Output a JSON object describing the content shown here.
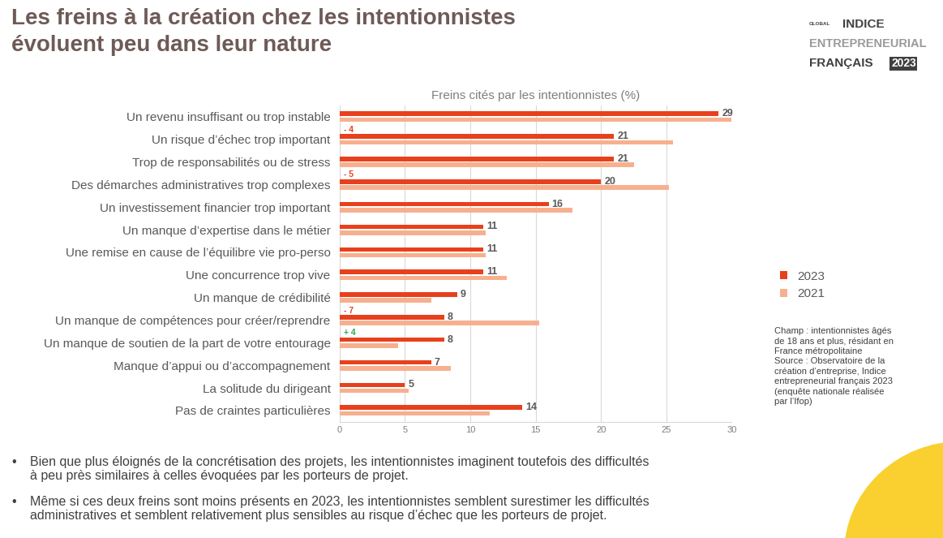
{
  "title": "Les freins à la création chez les intentionnistes\névoluent peu dans leur nature",
  "logo": [
    "GLOBAL",
    "INDICE",
    "ENTREPRENEURIAL",
    "FRANÇAIS",
    "2023"
  ],
  "chart_data": {
    "type": "bar",
    "orientation": "horizontal",
    "title": "Freins cités par les intentionnistes (%)",
    "categories": [
      "Un revenu insuffisant ou trop instable",
      "Un risque d’échec trop important",
      "Trop de responsabilités ou de stress",
      "Des démarches administratives trop complexes",
      "Un investissement financier trop important",
      "Un manque d’expertise dans le métier",
      "Une remise en cause de l’équilibre vie pro-perso",
      "Une concurrence trop vive",
      "Un manque de crédibilité",
      "Un manque de compétences pour créer/reprendre",
      "Un manque de soutien de la part de votre entourage",
      "Manque d’appui ou d’accompagnement",
      "La solitude du dirigeant",
      "Pas de craintes particulières"
    ],
    "series": [
      {
        "name": "2023",
        "color": "#e8401c",
        "values": [
          29,
          21,
          21,
          20,
          16,
          11,
          11,
          11,
          9,
          8,
          8,
          7,
          5,
          14
        ],
        "value_labels": [
          "29",
          "21",
          "21",
          "20",
          "16",
          "11",
          "11",
          "11",
          "9",
          "8",
          "8",
          "7",
          "5",
          "14"
        ]
      },
      {
        "name": "2021",
        "color": "#f7b08f",
        "values": [
          30,
          25.5,
          22.5,
          25.2,
          17.8,
          11.2,
          11.2,
          12.8,
          7,
          15.3,
          4.5,
          8.5,
          5.3,
          11.5
        ]
      }
    ],
    "annotations": [
      {
        "category": "Un risque d’échec trop important",
        "text": "- 4"
      },
      {
        "category": "Des démarches administratives trop complexes",
        "text": "- 5"
      },
      {
        "category": "Un manque de compétences pour créer/reprendre",
        "text": "- 7"
      },
      {
        "category": "Un manque de soutien de la part de votre entourage",
        "text": "+ 4"
      }
    ],
    "xlim": [
      0,
      30
    ],
    "xticks": [
      0,
      5,
      10,
      15,
      20,
      25,
      30
    ],
    "grid": true,
    "legend": "right",
    "data_labels": true
  },
  "note": "Champ : intentionnistes âgés\nde 18 ans et plus, résidant en\nFrance métropolitaine\nSource : Observatoire de la\ncréation d’entreprise, Indice\nentrepreneurial français 2023\n(enquête nationale réalisée\npar l’Ifop)",
  "bullet_symbol": "•",
  "bullets": [
    "Bien que plus éloignés de la concrétisation des projets, les intentionnistes imaginent toutefois des difficultés\nà peu près similaires à celles évoquées par les porteurs de projet.",
    "Même si ces deux freins sont moins présents en 2023, les intentionnistes semblent surestimer les difficultés\nadministratives et semblent relativement plus sensibles au risque d’échec que les porteurs de projet."
  ]
}
